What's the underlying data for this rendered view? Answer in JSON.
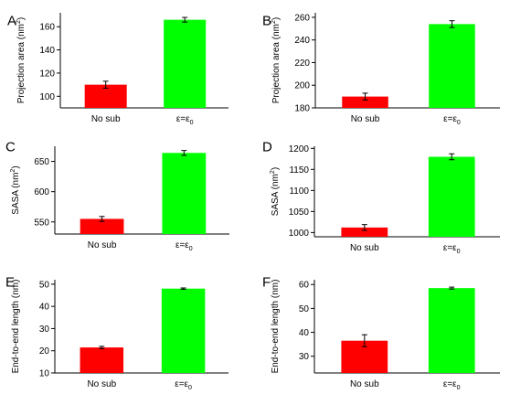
{
  "colors": {
    "no_sub": "#ff0000",
    "eps": "#00ff00",
    "axis": "#000000"
  },
  "chart_data": [
    {
      "type": "bar",
      "panel": "A",
      "categories": [
        "No sub",
        "ε=ε0"
      ],
      "values": [
        110,
        166
      ],
      "errors": [
        3,
        2
      ],
      "ylabel": "Projection area (nm²)",
      "ylim": [
        90,
        172
      ],
      "yticks": [
        100,
        120,
        140,
        160
      ]
    },
    {
      "type": "bar",
      "panel": "B",
      "categories": [
        "No sub",
        "ε=ε0"
      ],
      "values": [
        190,
        254
      ],
      "errors": [
        3,
        3
      ],
      "ylabel": "Projection area (nm²)",
      "ylim": [
        180,
        264
      ],
      "yticks": [
        180,
        200,
        220,
        240,
        260
      ]
    },
    {
      "type": "bar",
      "panel": "C",
      "categories": [
        "No sub",
        "ε=ε0"
      ],
      "values": [
        555,
        664
      ],
      "errors": [
        4,
        4
      ],
      "ylabel": "SASA (nm²)",
      "ylim": [
        530,
        675
      ],
      "yticks": [
        550,
        600,
        650
      ]
    },
    {
      "type": "bar",
      "panel": "D",
      "categories": [
        "No sub",
        "ε=ε0"
      ],
      "values": [
        1012,
        1180
      ],
      "errors": [
        7,
        7
      ],
      "ylabel": "SASA (nm²)",
      "ylim": [
        990,
        1205
      ],
      "yticks": [
        1000,
        1050,
        1100,
        1150,
        1200
      ]
    },
    {
      "type": "bar",
      "panel": "E",
      "categories": [
        "No sub",
        "ε=ε0"
      ],
      "values": [
        21.5,
        48
      ],
      "errors": [
        0.5,
        0.3
      ],
      "ylabel": "End-to-end length (nm)",
      "ylim": [
        10,
        52
      ],
      "yticks": [
        10,
        20,
        30,
        40,
        50
      ]
    },
    {
      "type": "bar",
      "panel": "F",
      "categories": [
        "No sub",
        "ε=ε0"
      ],
      "values": [
        36.5,
        58.5
      ],
      "errors": [
        2.5,
        0.4
      ],
      "ylabel": "End-to-end length (nm)",
      "ylim": [
        23,
        62
      ],
      "yticks": [
        30,
        40,
        50,
        60
      ]
    }
  ]
}
